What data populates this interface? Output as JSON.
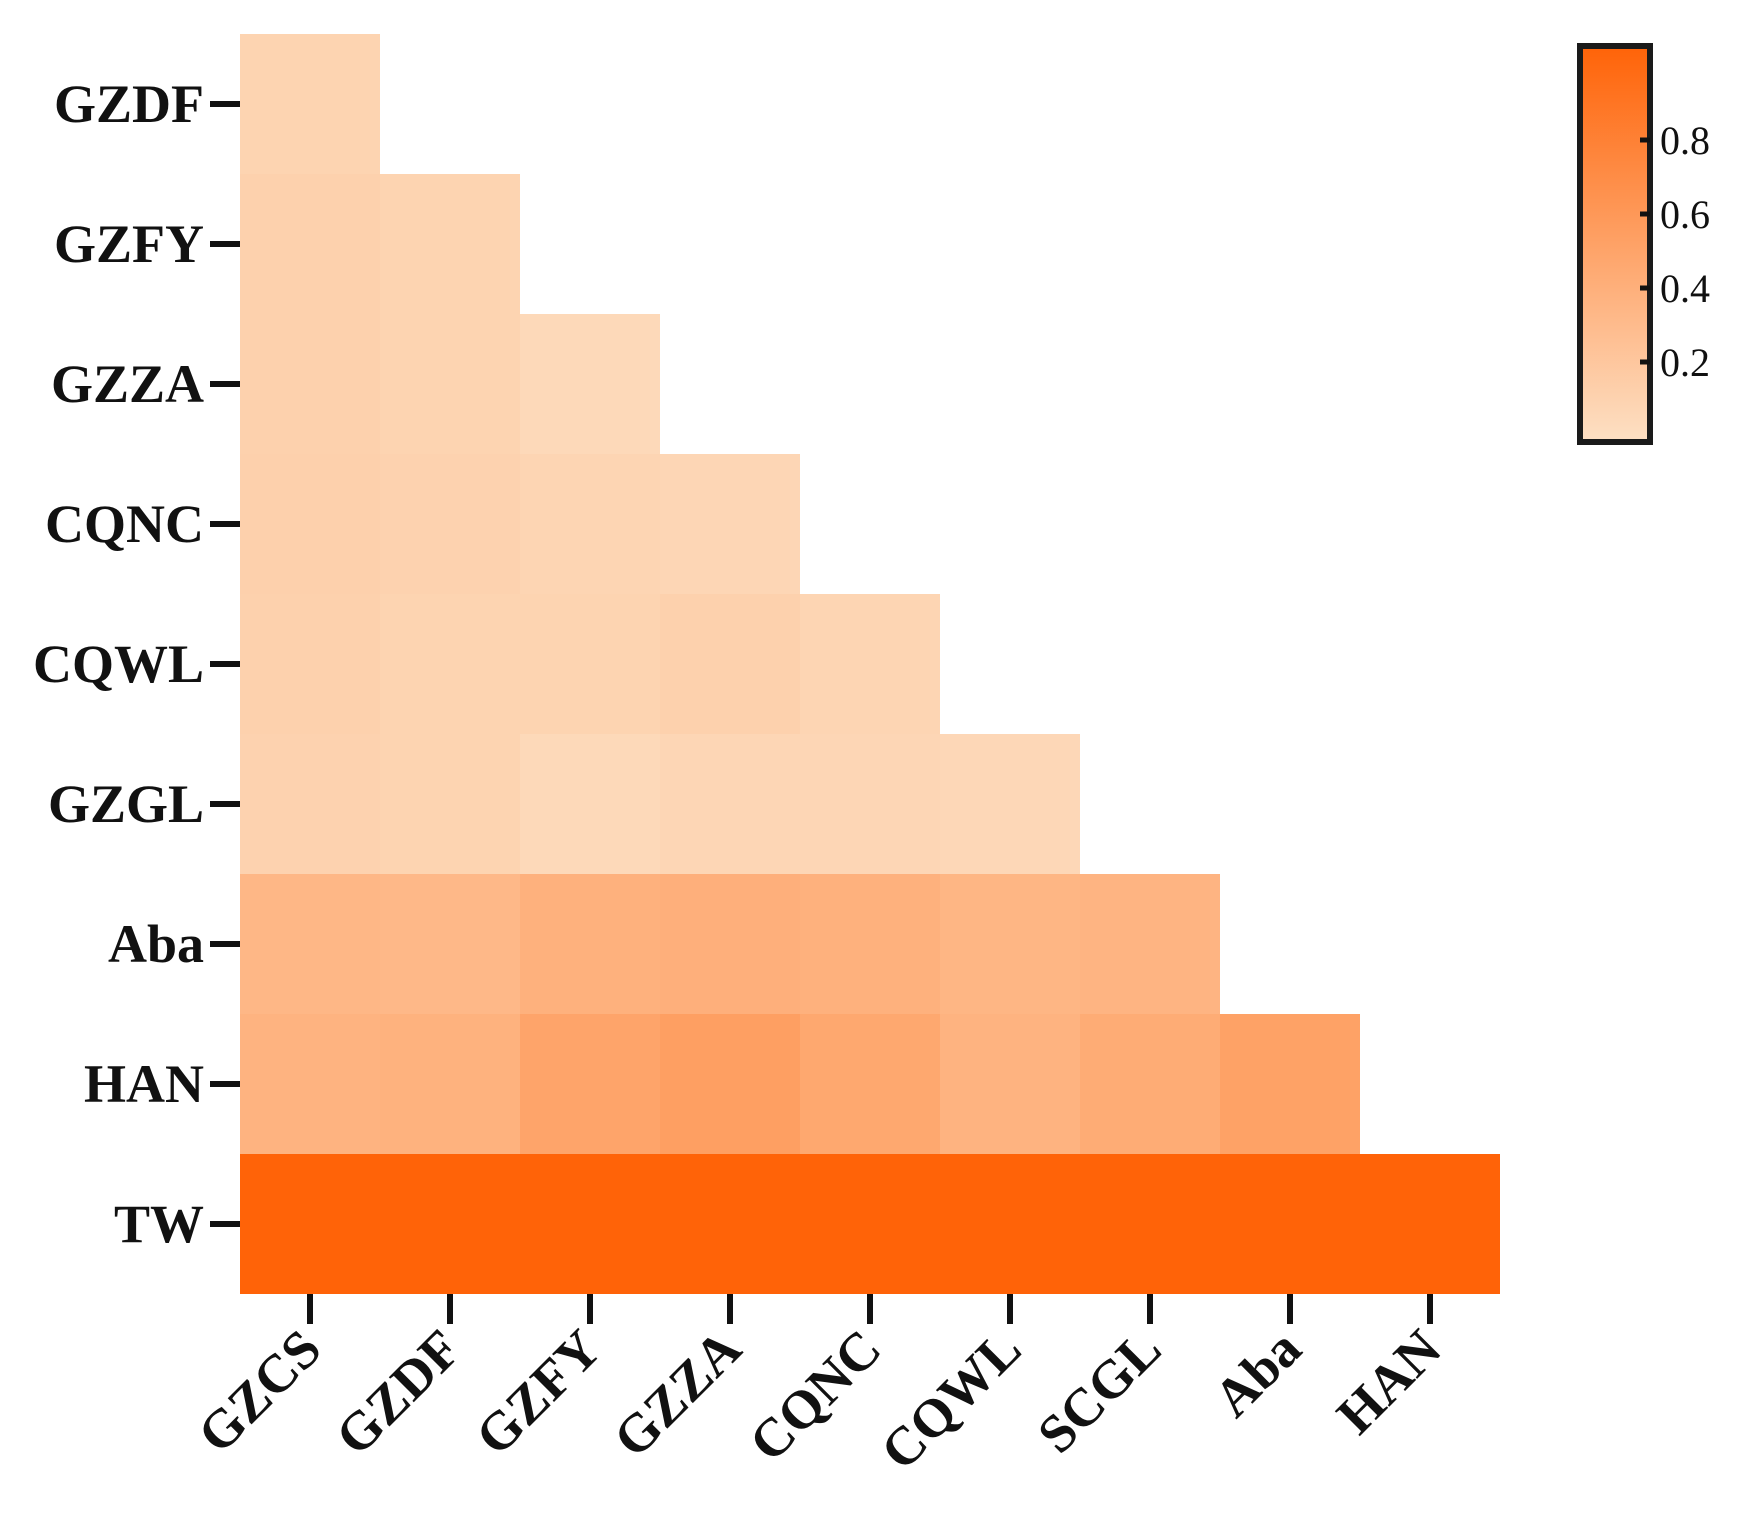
{
  "chart_data": {
    "type": "heatmap",
    "title": "",
    "xlabel": "",
    "ylabel": "",
    "x_categories": [
      "GZCS",
      "GZDF",
      "GZFY",
      "GZZA",
      "CQNC",
      "CQWL",
      "SCGL",
      "Aba",
      "HAN"
    ],
    "y_categories": [
      "GZDF",
      "GZFY",
      "GZZA",
      "CQNC",
      "CQWL",
      "GZGL",
      "Aba",
      "HAN",
      "TW"
    ],
    "values": [
      [
        0.1
      ],
      [
        0.12,
        0.1
      ],
      [
        0.12,
        0.1,
        0.06
      ],
      [
        0.13,
        0.11,
        0.09,
        0.08
      ],
      [
        0.12,
        0.1,
        0.1,
        0.12,
        0.09
      ],
      [
        0.11,
        0.1,
        0.06,
        0.08,
        0.08,
        0.07
      ],
      [
        0.33,
        0.32,
        0.38,
        0.39,
        0.38,
        0.34,
        0.35
      ],
      [
        0.36,
        0.37,
        0.48,
        0.52,
        0.45,
        0.36,
        0.42,
        0.5
      ],
      [
        1.0,
        1.0,
        1.0,
        1.0,
        1.0,
        1.0,
        1.0,
        1.0,
        1.0
      ]
    ],
    "colorscale": {
      "min": 0.0,
      "max": 1.0,
      "low_color": "#fde0c4",
      "high_color": "#ff6308"
    },
    "colorbar": {
      "ticks": [
        "0.2",
        "0.4",
        "0.6",
        "0.8"
      ],
      "tick_values": [
        0.2,
        0.4,
        0.6,
        0.8
      ]
    },
    "grid": false,
    "legend": "colorbar top-right"
  }
}
